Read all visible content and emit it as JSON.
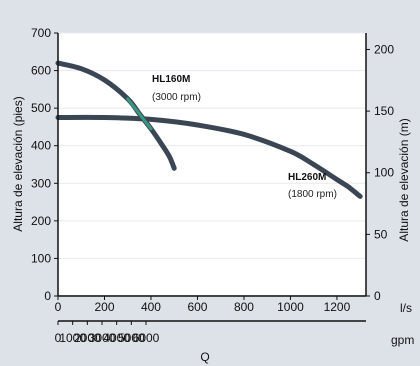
{
  "chart_data": {
    "type": "line",
    "background_color": "#dde1e8",
    "plot_color": "#ffffff",
    "curve_color": "#3a4654",
    "highlight_color": "#3aa58a",
    "y_left": {
      "label": "Altura de elevación (pies)",
      "ticks": [
        "0",
        "100",
        "200",
        "300",
        "400",
        "500",
        "600",
        "700"
      ],
      "ylim": [
        0,
        700
      ]
    },
    "y_right": {
      "label": "Altura de elevación (m)",
      "ticks": [
        "0",
        "50",
        "100",
        "150",
        "200"
      ],
      "ylim": [
        0,
        213.36
      ]
    },
    "x_top": {
      "unit": "l/s",
      "ticks": [
        "0",
        "200",
        "400",
        "600",
        "800",
        "1000",
        "1200"
      ],
      "xlim": [
        0,
        1325
      ]
    },
    "x_bottom": {
      "unit": "gpm",
      "title": "Q",
      "ticks": [
        "0",
        "1000",
        "2000",
        "3000",
        "4000",
        "5000",
        "6000"
      ],
      "tick_values": [
        0,
        1000,
        2000,
        3000,
        4000,
        5000,
        6000
      ],
      "xlim": [
        0,
        21000
      ]
    },
    "series": [
      {
        "name": "HL160M",
        "subtitle": "(3000 rpm)",
        "x": [
          0,
          100,
          200,
          300,
          350,
          400,
          450,
          480,
          500
        ],
        "y": [
          620,
          605,
          575,
          525,
          485,
          445,
          400,
          370,
          340
        ]
      },
      {
        "name": "HL260M",
        "subtitle": "(1800 rpm)",
        "x": [
          0,
          200,
          400,
          600,
          800,
          1000,
          1100,
          1200,
          1250,
          1300
        ],
        "y": [
          475,
          475,
          470,
          455,
          430,
          385,
          350,
          310,
          290,
          265
        ]
      }
    ]
  }
}
